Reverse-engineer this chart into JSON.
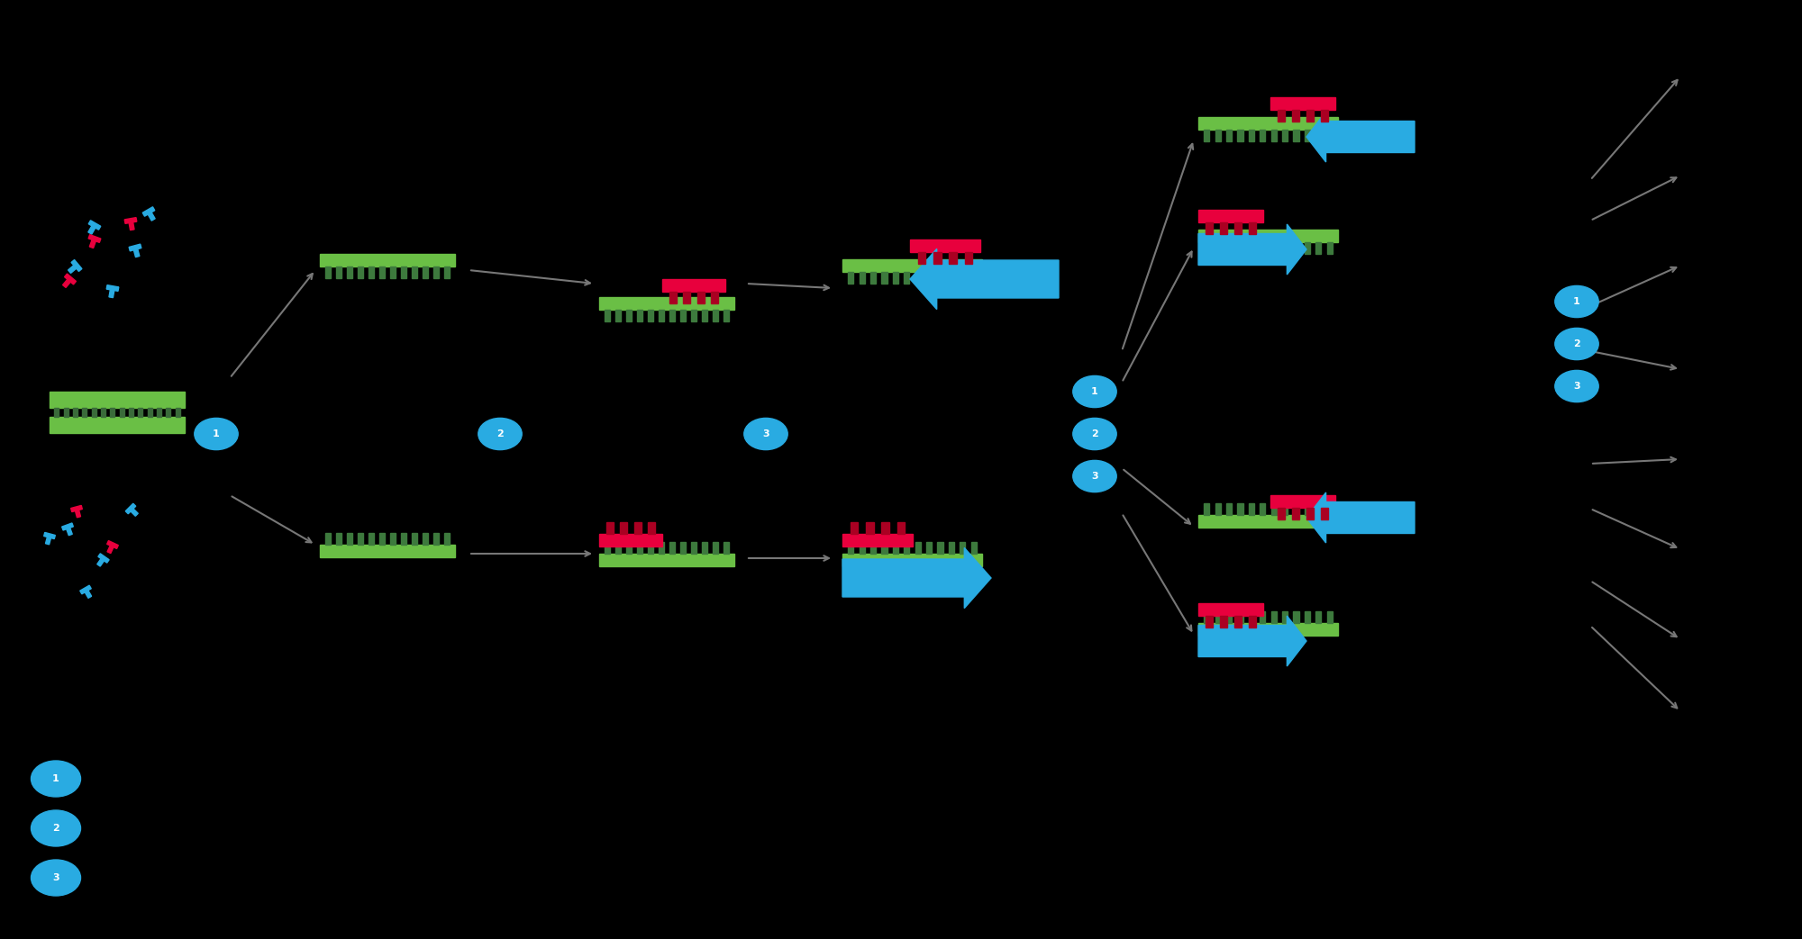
{
  "bg_color": "#000000",
  "green_color": "#6abf45",
  "dark_green_color": "#3d7a3d",
  "red_color": "#e8003d",
  "blue_color": "#29abe2",
  "arrow_color": "#29abe2",
  "teeth_color": "#3a6b3a",
  "dark_red_color": "#aa0022",
  "figsize": [
    20.0,
    10.43
  ],
  "dpi": 100
}
